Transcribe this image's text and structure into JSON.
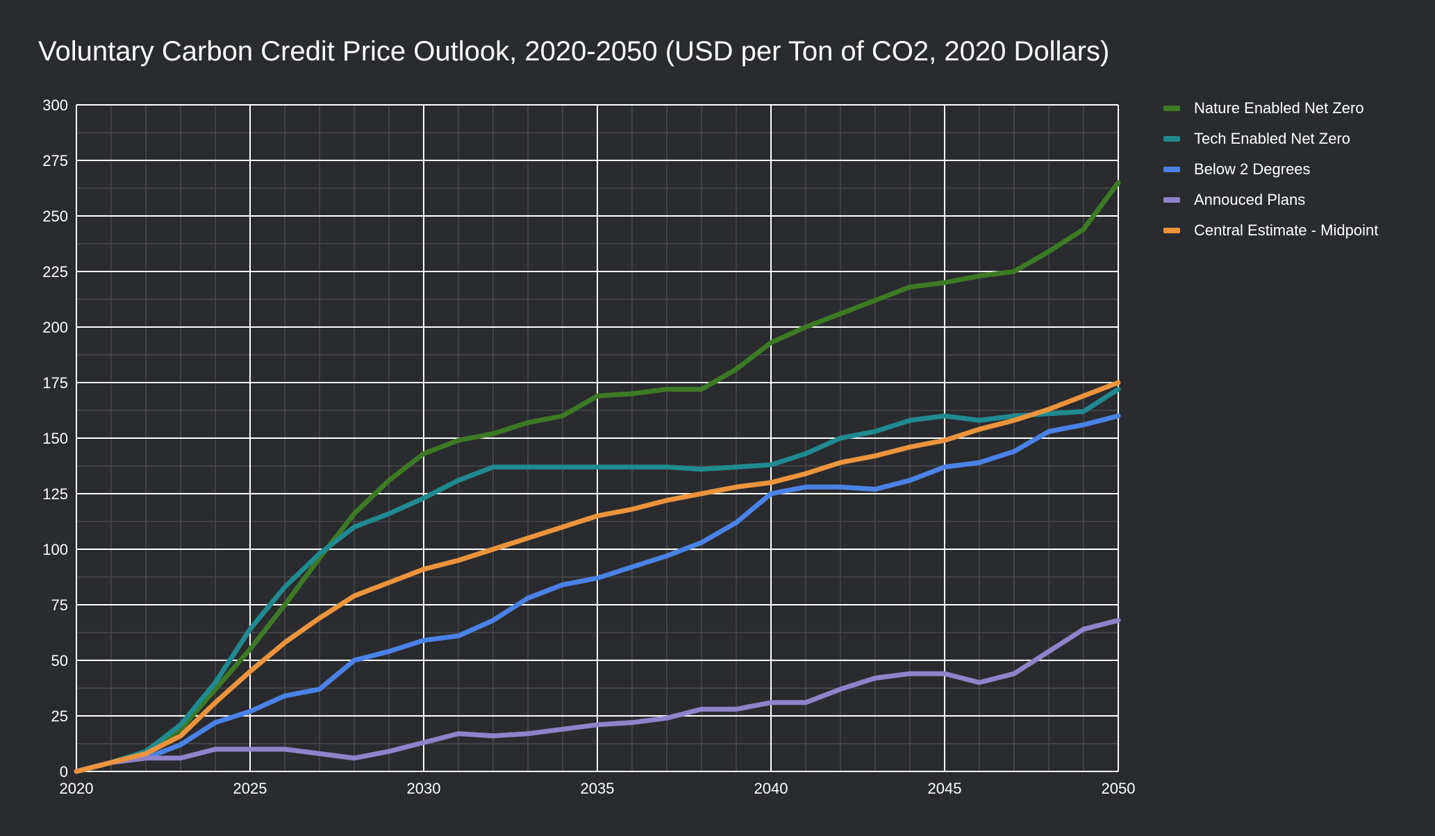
{
  "chart_data": {
    "type": "line",
    "title": "Voluntary Carbon Credit Price Outlook, 2020-2050 (USD per Ton of CO2, 2020 Dollars)",
    "xlabel": "",
    "ylabel": "",
    "xlim": [
      2020,
      2050
    ],
    "ylim": [
      0,
      300
    ],
    "x_ticks": [
      2020,
      2025,
      2030,
      2035,
      2040,
      2045,
      2050
    ],
    "y_ticks": [
      0,
      25,
      50,
      75,
      100,
      125,
      150,
      175,
      200,
      225,
      250,
      275,
      300
    ],
    "grid": true,
    "legend_position": "right",
    "background_color": "#2a2b2e",
    "x": [
      2020,
      2021,
      2022,
      2023,
      2024,
      2025,
      2026,
      2027,
      2028,
      2029,
      2030,
      2031,
      2032,
      2033,
      2034,
      2035,
      2036,
      2037,
      2038,
      2039,
      2040,
      2041,
      2042,
      2043,
      2044,
      2045,
      2046,
      2047,
      2048,
      2049,
      2050
    ],
    "series": [
      {
        "name": "Nature Enabled Net Zero",
        "color": "#3c7a25",
        "values": [
          0,
          4,
          9,
          19,
          37,
          55,
          75,
          96,
          116,
          131,
          143,
          149,
          152,
          157,
          160,
          169,
          170,
          172,
          172,
          181,
          193,
          200,
          206,
          212,
          218,
          220,
          223,
          225,
          234,
          244,
          265
        ]
      },
      {
        "name": "Tech Enabled Net Zero",
        "color": "#1f8a8f",
        "values": [
          0,
          4,
          9,
          21,
          40,
          64,
          83,
          98,
          110,
          116,
          123,
          131,
          137,
          137,
          137,
          137,
          137,
          137,
          136,
          137,
          138,
          143,
          150,
          153,
          158,
          160,
          158,
          160,
          161,
          162,
          172
        ]
      },
      {
        "name": "Below 2 Degrees",
        "color": "#4a82e6",
        "values": [
          0,
          4,
          6,
          12,
          22,
          27,
          34,
          37,
          50,
          54,
          59,
          61,
          68,
          78,
          84,
          87,
          92,
          97,
          103,
          112,
          125,
          128,
          128,
          127,
          131,
          137,
          139,
          144,
          153,
          156,
          160
        ]
      },
      {
        "name": "Annouced Plans",
        "color": "#8f83c9",
        "values": [
          0,
          4,
          6,
          6,
          10,
          10,
          10,
          8,
          6,
          9,
          13,
          17,
          16,
          17,
          19,
          21,
          22,
          24,
          28,
          28,
          31,
          31,
          37,
          42,
          44,
          44,
          40,
          44,
          54,
          64,
          68
        ]
      },
      {
        "name": "Central Estimate - Midpoint",
        "color": "#ec943c",
        "values": [
          0,
          4,
          8,
          16,
          31,
          45,
          58,
          69,
          79,
          85,
          91,
          95,
          100,
          105,
          110,
          115,
          118,
          122,
          125,
          128,
          130,
          134,
          139,
          142,
          146,
          149,
          154,
          158,
          163,
          169,
          175
        ]
      }
    ]
  }
}
